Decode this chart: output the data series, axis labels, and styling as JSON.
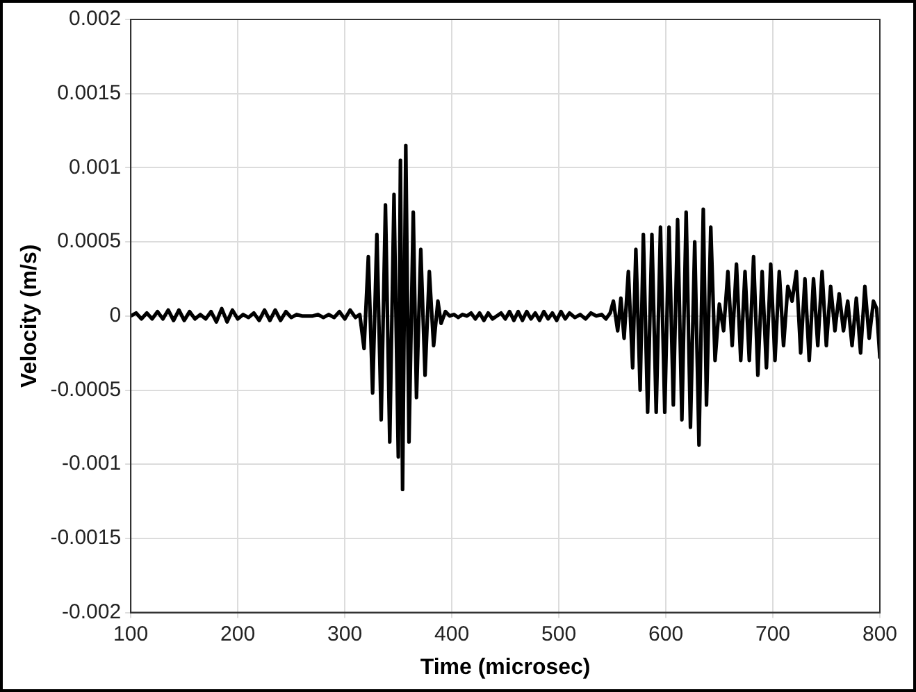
{
  "chart_data": {
    "type": "line",
    "xlabel": "Time (microsec)",
    "ylabel": "Velocity (m/s)",
    "xlim": [
      100,
      800
    ],
    "xticks": [
      100,
      200,
      300,
      400,
      500,
      600,
      700,
      800
    ],
    "ylim": [
      -0.002,
      0.002
    ],
    "yticks": [
      -0.002,
      -0.0015,
      -0.001,
      -0.0005,
      0,
      0.0005,
      0.001,
      0.0015,
      0.002
    ],
    "grid": true,
    "legend": false,
    "marker": "none",
    "line_style": "solid",
    "series": [
      {
        "color": "#000000",
        "x": [
          100,
          105,
          110,
          115,
          120,
          125,
          130,
          135,
          140,
          145,
          150,
          155,
          160,
          165,
          170,
          175,
          180,
          185,
          190,
          195,
          200,
          205,
          210,
          215,
          220,
          225,
          230,
          235,
          240,
          245,
          250,
          255,
          260,
          265,
          270,
          275,
          280,
          285,
          290,
          295,
          300,
          305,
          310,
          314,
          318,
          322,
          326,
          330,
          334,
          338,
          342,
          346,
          350,
          352,
          354,
          357,
          360,
          364,
          367,
          371,
          375,
          379,
          383,
          387,
          390,
          394,
          398,
          402,
          406,
          410,
          414,
          418,
          422,
          426,
          430,
          434,
          438,
          442,
          446,
          450,
          454,
          458,
          462,
          466,
          470,
          474,
          478,
          482,
          486,
          490,
          494,
          498,
          502,
          506,
          510,
          515,
          520,
          525,
          530,
          535,
          540,
          544,
          548,
          551,
          555,
          558,
          561,
          565,
          569,
          572,
          576,
          579,
          583,
          587,
          591,
          595,
          599,
          603,
          607,
          611,
          615,
          619,
          623,
          627,
          631,
          635,
          638,
          642,
          646,
          650,
          654,
          658,
          662,
          666,
          670,
          674,
          678,
          682,
          686,
          690,
          694,
          698,
          702,
          706,
          710,
          714,
          718,
          722,
          726,
          730,
          734,
          738,
          742,
          746,
          750,
          754,
          758,
          762,
          766,
          770,
          774,
          778,
          782,
          786,
          790,
          794,
          797,
          800
        ],
        "values": [
          0,
          2e-05,
          -2e-05,
          2e-05,
          -2e-05,
          3e-05,
          -2e-05,
          4e-05,
          -3e-05,
          4e-05,
          -3e-05,
          3e-05,
          -2e-05,
          1e-05,
          -2e-05,
          3e-05,
          -4e-05,
          5e-05,
          -4e-05,
          4e-05,
          -2e-05,
          1e-05,
          -1e-05,
          2e-05,
          -3e-05,
          4e-05,
          -3e-05,
          4e-05,
          -3e-05,
          3e-05,
          -1e-05,
          1e-05,
          0,
          0,
          0,
          1e-05,
          -1e-05,
          1e-05,
          -1e-05,
          3e-05,
          -2e-05,
          4e-05,
          -1e-05,
          1e-05,
          -0.00022,
          0.0004,
          -0.00052,
          0.00055,
          -0.0007,
          0.00075,
          -0.00085,
          0.00082,
          -0.00095,
          0.00105,
          -0.00117,
          0.00115,
          -0.00085,
          0.0007,
          -0.00055,
          0.00045,
          -0.0004,
          0.0003,
          -0.0002,
          0.0001,
          -5e-05,
          3e-05,
          0,
          1e-05,
          -1e-05,
          1e-05,
          0,
          2e-05,
          -2e-05,
          2e-05,
          -3e-05,
          2e-05,
          -2e-05,
          0,
          2e-05,
          -2e-05,
          3e-05,
          -3e-05,
          3e-05,
          -3e-05,
          3e-05,
          -2e-05,
          2e-05,
          -3e-05,
          3e-05,
          -2e-05,
          2e-05,
          -3e-05,
          3e-05,
          -2e-05,
          2e-05,
          -1e-05,
          1e-05,
          -2e-05,
          2e-05,
          0,
          1e-05,
          -2e-05,
          2e-05,
          0.0001,
          -0.0001,
          0.00012,
          -0.00015,
          0.0003,
          -0.00035,
          0.00045,
          -0.0005,
          0.00055,
          -0.00065,
          0.00055,
          -0.00065,
          0.0006,
          -0.00065,
          0.0006,
          -0.0006,
          0.00065,
          -0.0007,
          0.0007,
          -0.00075,
          0.0005,
          -0.00087,
          0.00072,
          -0.0006,
          0.0006,
          -0.0003,
          8e-05,
          -0.0001,
          0.0003,
          -0.0002,
          0.00035,
          -0.0003,
          0.0003,
          -0.0003,
          0.0004,
          -0.0004,
          0.0003,
          -0.00035,
          0.00035,
          -0.0003,
          0.0003,
          -0.0002,
          0.0002,
          0.0001,
          0.0003,
          -0.00025,
          0.00025,
          -0.0003,
          0.00025,
          -0.0002,
          0.0003,
          -0.0002,
          0.0002,
          -0.0001,
          0.00015,
          -0.0001,
          0.0001,
          -0.0002,
          0.00012,
          -0.00025,
          0.0002,
          -0.00015,
          0.0001,
          5e-05,
          -0.00028
        ]
      }
    ]
  }
}
